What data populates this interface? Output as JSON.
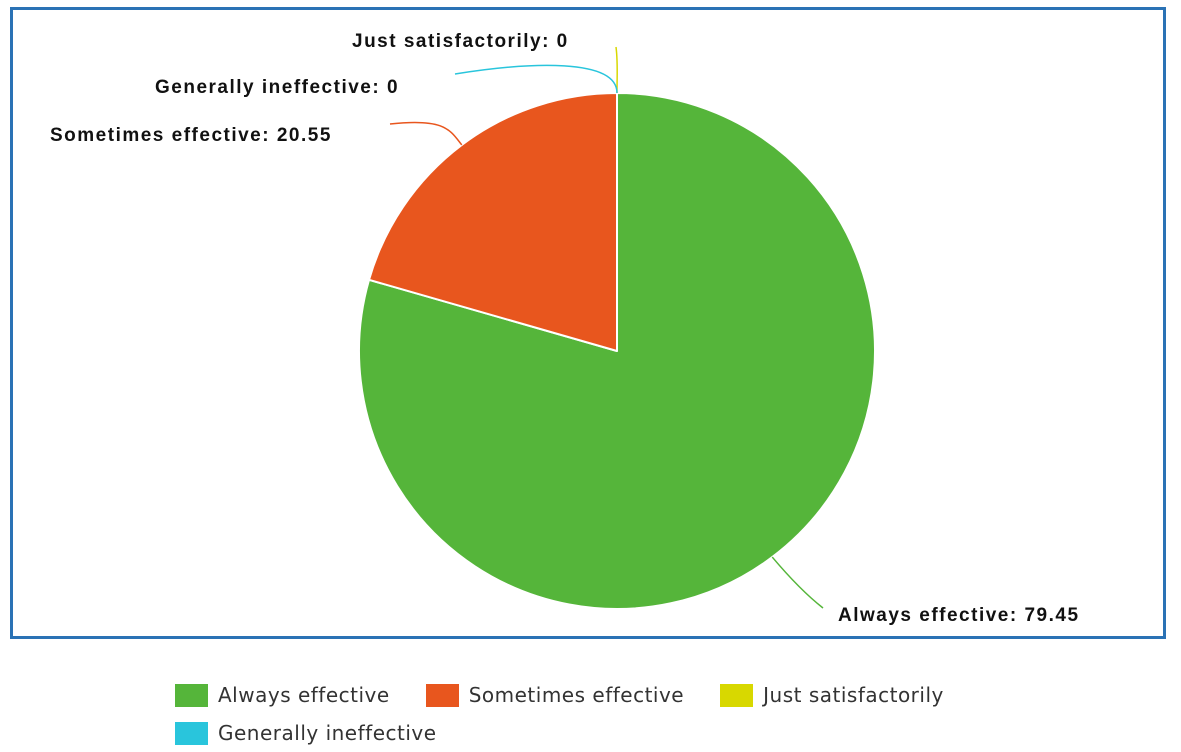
{
  "chart_data": {
    "type": "pie",
    "slices": [
      {
        "label": "Always effective",
        "value": 79.45,
        "color": "#55b53a",
        "data_label": "Always effective: 79.45"
      },
      {
        "label": "Sometimes effective",
        "value": 20.55,
        "color": "#e8561e",
        "data_label": "Sometimes effective: 20.55"
      },
      {
        "label": "Just satisfactorily",
        "value": 0,
        "color": "#d8d800",
        "data_label": "Just satisfactorily: 0"
      },
      {
        "label": "Generally ineffective",
        "value": 0,
        "color": "#29c5dc",
        "data_label": "Generally ineffective: 0"
      }
    ],
    "legend": {
      "placement": "bottom",
      "rows": [
        [
          "Always effective",
          "Sometimes effective",
          "Just satisfactorily"
        ],
        [
          "Generally ineffective"
        ]
      ]
    },
    "frame_color": "#2a72b5"
  }
}
